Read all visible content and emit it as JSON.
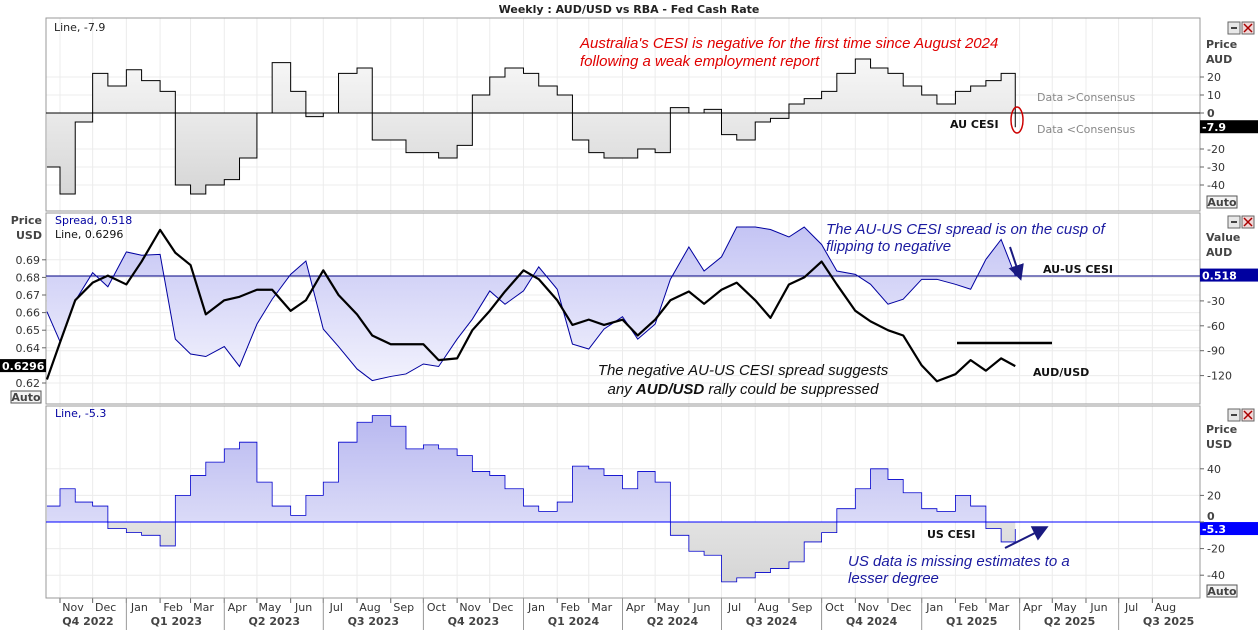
{
  "title": "Weekly : AUD/USD vs RBA - Fed Cash Rate",
  "colors": {
    "au_line": "#000000",
    "spread": "#0000a0",
    "audusd": "#000000",
    "us_line": "#0000cc",
    "red_note": "#e00000",
    "blue_note": "#1a1aa0",
    "tag_blue": "#0000a0",
    "tag_bright": "#0000ff"
  },
  "panels": {
    "au": {
      "legend": "Line, -7.9",
      "axis_title": [
        "Price",
        "AUD"
      ],
      "ticks": [
        "20",
        "10",
        "0",
        "-20",
        "-30",
        "-40"
      ],
      "tick_values": [
        20,
        10,
        0,
        -20,
        -30,
        -40
      ],
      "last_tag": "-7.9",
      "auto": "Auto",
      "series_label": "AU CESI",
      "note": [
        "Australia's CESI is negative for the first time since August 2024",
        "following a weak employment report"
      ],
      "above": "Data >Consensus",
      "below": "Data <Consensus"
    },
    "spread": {
      "legend_spread": "Spread, 0.518",
      "legend_line": "Line, 0.6296",
      "left_title": [
        "Price",
        "USD"
      ],
      "left_ticks": [
        "0.69",
        "0.68",
        "0.67",
        "0.66",
        "0.65",
        "0.64",
        "0.62"
      ],
      "left_tick_values": [
        0.69,
        0.68,
        0.67,
        0.66,
        0.65,
        0.64,
        0.62
      ],
      "left_tag": "0.6296",
      "right_title": [
        "Value",
        "AUD"
      ],
      "right_ticks": [
        "-30",
        "-60",
        "-90",
        "-120"
      ],
      "right_tick_values": [
        -30,
        -60,
        -90,
        -120
      ],
      "right_tag": "0.518",
      "auto": "Auto",
      "label_spread": "AU-US CESI",
      "label_audusd": "AUD/USD",
      "note_top": [
        "The AU-US CESI spread is on the cusp of",
        "flipping to negative"
      ],
      "note_bottom_1": "The negative AU-US CESI spread suggests",
      "note_bottom_2a": "any ",
      "note_bottom_2b": "AUD/USD",
      "note_bottom_2c": " rally could be suppressed"
    },
    "us": {
      "legend": "Line, -5.3",
      "axis_title": [
        "Price",
        "USD"
      ],
      "ticks": [
        "40",
        "20",
        "0",
        "-20",
        "-40"
      ],
      "tick_values": [
        40,
        20,
        0,
        -20,
        -40
      ],
      "last_tag": "-5.3",
      "auto": "Auto",
      "series_label": "US CESI",
      "note": [
        "US data is missing estimates to a",
        "lesser degree"
      ]
    }
  },
  "x_axis": {
    "months": [
      "Nov",
      "Dec",
      "Jan",
      "Feb",
      "Mar",
      "Apr",
      "May",
      "Jun",
      "Jul",
      "Aug",
      "Sep",
      "Oct",
      "Nov",
      "Dec",
      "Jan",
      "Feb",
      "Mar",
      "Apr",
      "May",
      "Jun",
      "Jul",
      "Aug",
      "Sep",
      "Oct",
      "Nov",
      "Dec",
      "Jan",
      "Feb",
      "Mar",
      "Apr",
      "May",
      "Jun",
      "Jul",
      "Aug"
    ],
    "quarters": [
      "Q4 2022",
      "Q1 2023",
      "Q2 2023",
      "Q3 2023",
      "Q4 2023",
      "Q1 2024",
      "Q2 2024",
      "Q3 2024",
      "Q4 2024",
      "Q1 2025",
      "Q2 2025",
      "Q3 2025"
    ]
  },
  "chart_data": {
    "type": "line",
    "title": "Weekly : AUD/USD vs RBA - Fed Cash Rate",
    "x_range": [
      "2022-10",
      "2025-08"
    ],
    "grid": true,
    "x": [
      "2022-10-20",
      "2022-11-01",
      "2022-11-15",
      "2022-12-01",
      "2022-12-15",
      "2023-01-01",
      "2023-01-15",
      "2023-02-01",
      "2023-02-15",
      "2023-03-01",
      "2023-03-15",
      "2023-04-01",
      "2023-04-15",
      "2023-05-01",
      "2023-05-15",
      "2023-06-01",
      "2023-06-15",
      "2023-07-01",
      "2023-07-15",
      "2023-08-01",
      "2023-08-15",
      "2023-09-01",
      "2023-09-15",
      "2023-10-01",
      "2023-10-15",
      "2023-11-01",
      "2023-11-15",
      "2023-12-01",
      "2023-12-15",
      "2024-01-01",
      "2024-01-15",
      "2024-02-01",
      "2024-02-15",
      "2024-03-01",
      "2024-03-15",
      "2024-04-01",
      "2024-04-15",
      "2024-05-01",
      "2024-05-15",
      "2024-06-01",
      "2024-06-15",
      "2024-07-01",
      "2024-07-15",
      "2024-08-01",
      "2024-08-15",
      "2024-09-01",
      "2024-09-15",
      "2024-10-01",
      "2024-10-15",
      "2024-11-01",
      "2024-11-15",
      "2024-12-01",
      "2024-12-15",
      "2025-01-01",
      "2025-01-15",
      "2025-02-01",
      "2025-02-15",
      "2025-03-01",
      "2025-03-15",
      "2025-03-28"
    ],
    "series": [
      {
        "name": "AU CESI",
        "panel": "au",
        "style": "step",
        "ylim": [
          -45,
          50
        ],
        "values": [
          -30,
          -45,
          -5,
          22,
          15,
          24,
          18,
          12,
          -40,
          -45,
          -40,
          -37,
          -25,
          0,
          28,
          12,
          -2,
          0,
          22,
          25,
          -15,
          -15,
          -22,
          -22,
          -25,
          -18,
          10,
          20,
          25,
          22,
          15,
          10,
          -15,
          -22,
          -25,
          -25,
          -20,
          -22,
          3,
          0,
          2,
          -12,
          -15,
          -5,
          -3,
          5,
          8,
          12,
          22,
          30,
          25,
          22,
          15,
          10,
          5,
          12,
          15,
          18,
          22,
          -7.9
        ]
      },
      {
        "name": "AU-US CESI",
        "panel": "spread",
        "axis": "right",
        "style": "line",
        "ylim": [
          -130,
          70
        ],
        "values": [
          -43,
          -79,
          -30,
          4,
          -13,
          29,
          25,
          26,
          -76,
          -94,
          -97,
          -85,
          -109,
          -58,
          -28,
          2,
          18,
          -64,
          -85,
          -112,
          -126,
          -121,
          -118,
          -106,
          -109,
          -76,
          -52,
          -18,
          -34,
          -18,
          11,
          -16,
          -82,
          -88,
          -64,
          -49,
          -76,
          -58,
          -4,
          35,
          6,
          23,
          59,
          59,
          56,
          47,
          59,
          38,
          6,
          2,
          -10,
          -34,
          -28,
          -4,
          -4,
          -10,
          -16,
          20,
          44,
          0.518
        ]
      },
      {
        "name": "AUD/USD",
        "panel": "spread",
        "axis": "left",
        "style": "line",
        "ylim": [
          0.615,
          0.72
        ],
        "values": [
          0.622,
          0.643,
          0.667,
          0.677,
          0.681,
          0.676,
          0.689,
          0.707,
          0.694,
          0.687,
          0.659,
          0.667,
          0.669,
          0.673,
          0.673,
          0.661,
          0.667,
          0.684,
          0.67,
          0.659,
          0.647,
          0.642,
          0.642,
          0.642,
          0.633,
          0.634,
          0.65,
          0.661,
          0.672,
          0.684,
          0.679,
          0.667,
          0.653,
          0.656,
          0.653,
          0.656,
          0.647,
          0.656,
          0.667,
          0.672,
          0.665,
          0.673,
          0.677,
          0.667,
          0.657,
          0.676,
          0.68,
          0.689,
          0.676,
          0.661,
          0.655,
          0.65,
          0.647,
          0.63,
          0.621,
          0.625,
          0.633,
          0.627,
          0.634,
          0.6296
        ]
      },
      {
        "name": "US CESI",
        "panel": "us",
        "style": "step",
        "ylim": [
          -50,
          85
        ],
        "values": [
          12,
          25,
          15,
          12,
          -5,
          -8,
          -10,
          -18,
          20,
          35,
          45,
          55,
          60,
          30,
          12,
          5,
          20,
          30,
          60,
          75,
          80,
          72,
          55,
          58,
          55,
          50,
          38,
          35,
          25,
          12,
          8,
          15,
          42,
          40,
          35,
          25,
          38,
          30,
          -10,
          -22,
          -25,
          -45,
          -42,
          -38,
          -35,
          -30,
          -15,
          -8,
          10,
          25,
          40,
          32,
          22,
          10,
          8,
          20,
          12,
          -5,
          -15,
          -5.3
        ]
      }
    ]
  }
}
